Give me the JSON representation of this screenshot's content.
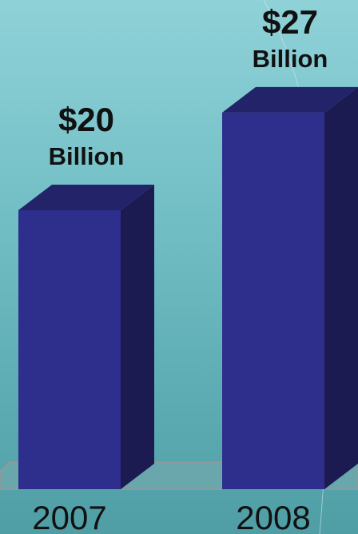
{
  "chart_data": {
    "type": "bar3d",
    "categories": [
      "2007",
      "2008"
    ],
    "values": [
      20,
      27
    ],
    "value_labels": [
      "$20 Billion",
      "$27 Billion"
    ],
    "color": "#2e2e8c"
  }
}
